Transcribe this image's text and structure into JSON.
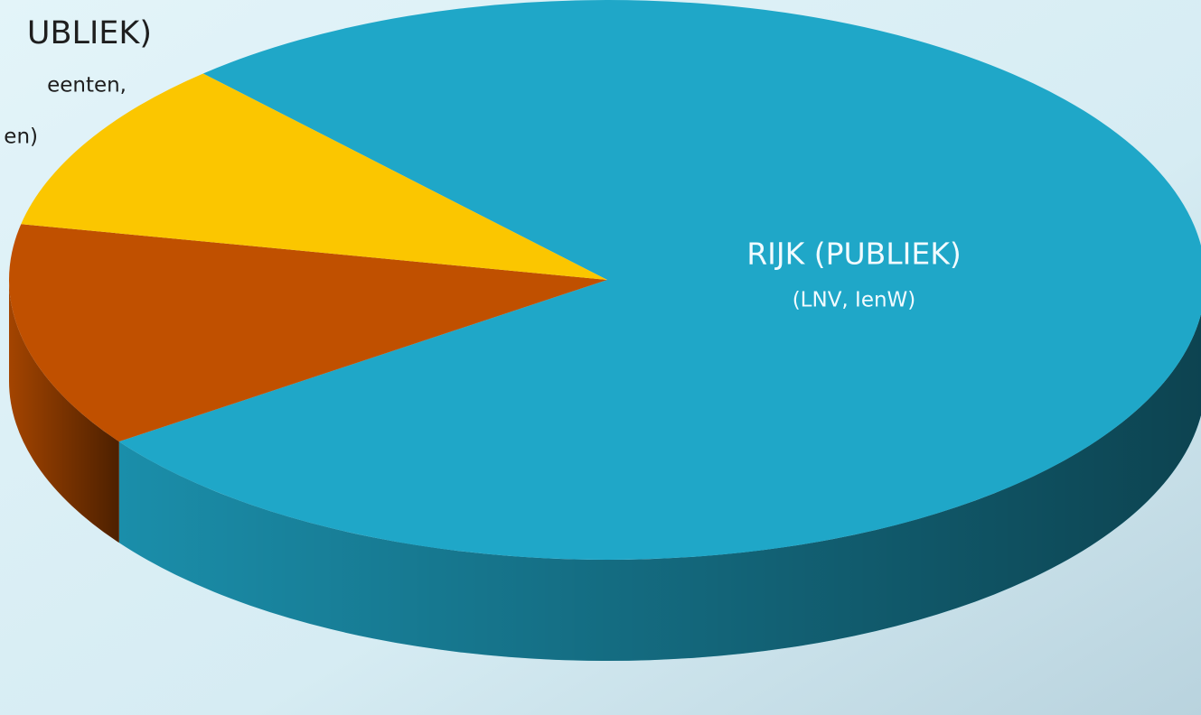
{
  "chart_data": {
    "type": "pie3d",
    "categories": [
      "RIJK (PUBLIEK)",
      null,
      "UBLIEK)"
    ],
    "details": [
      [
        "(LNV, IenW)"
      ],
      null,
      [
        "eenten,",
        "en)"
      ]
    ],
    "values": [
      77,
      13,
      10
    ],
    "colors": [
      "#1fa7c8",
      "#c05000",
      "#fbc600"
    ]
  }
}
